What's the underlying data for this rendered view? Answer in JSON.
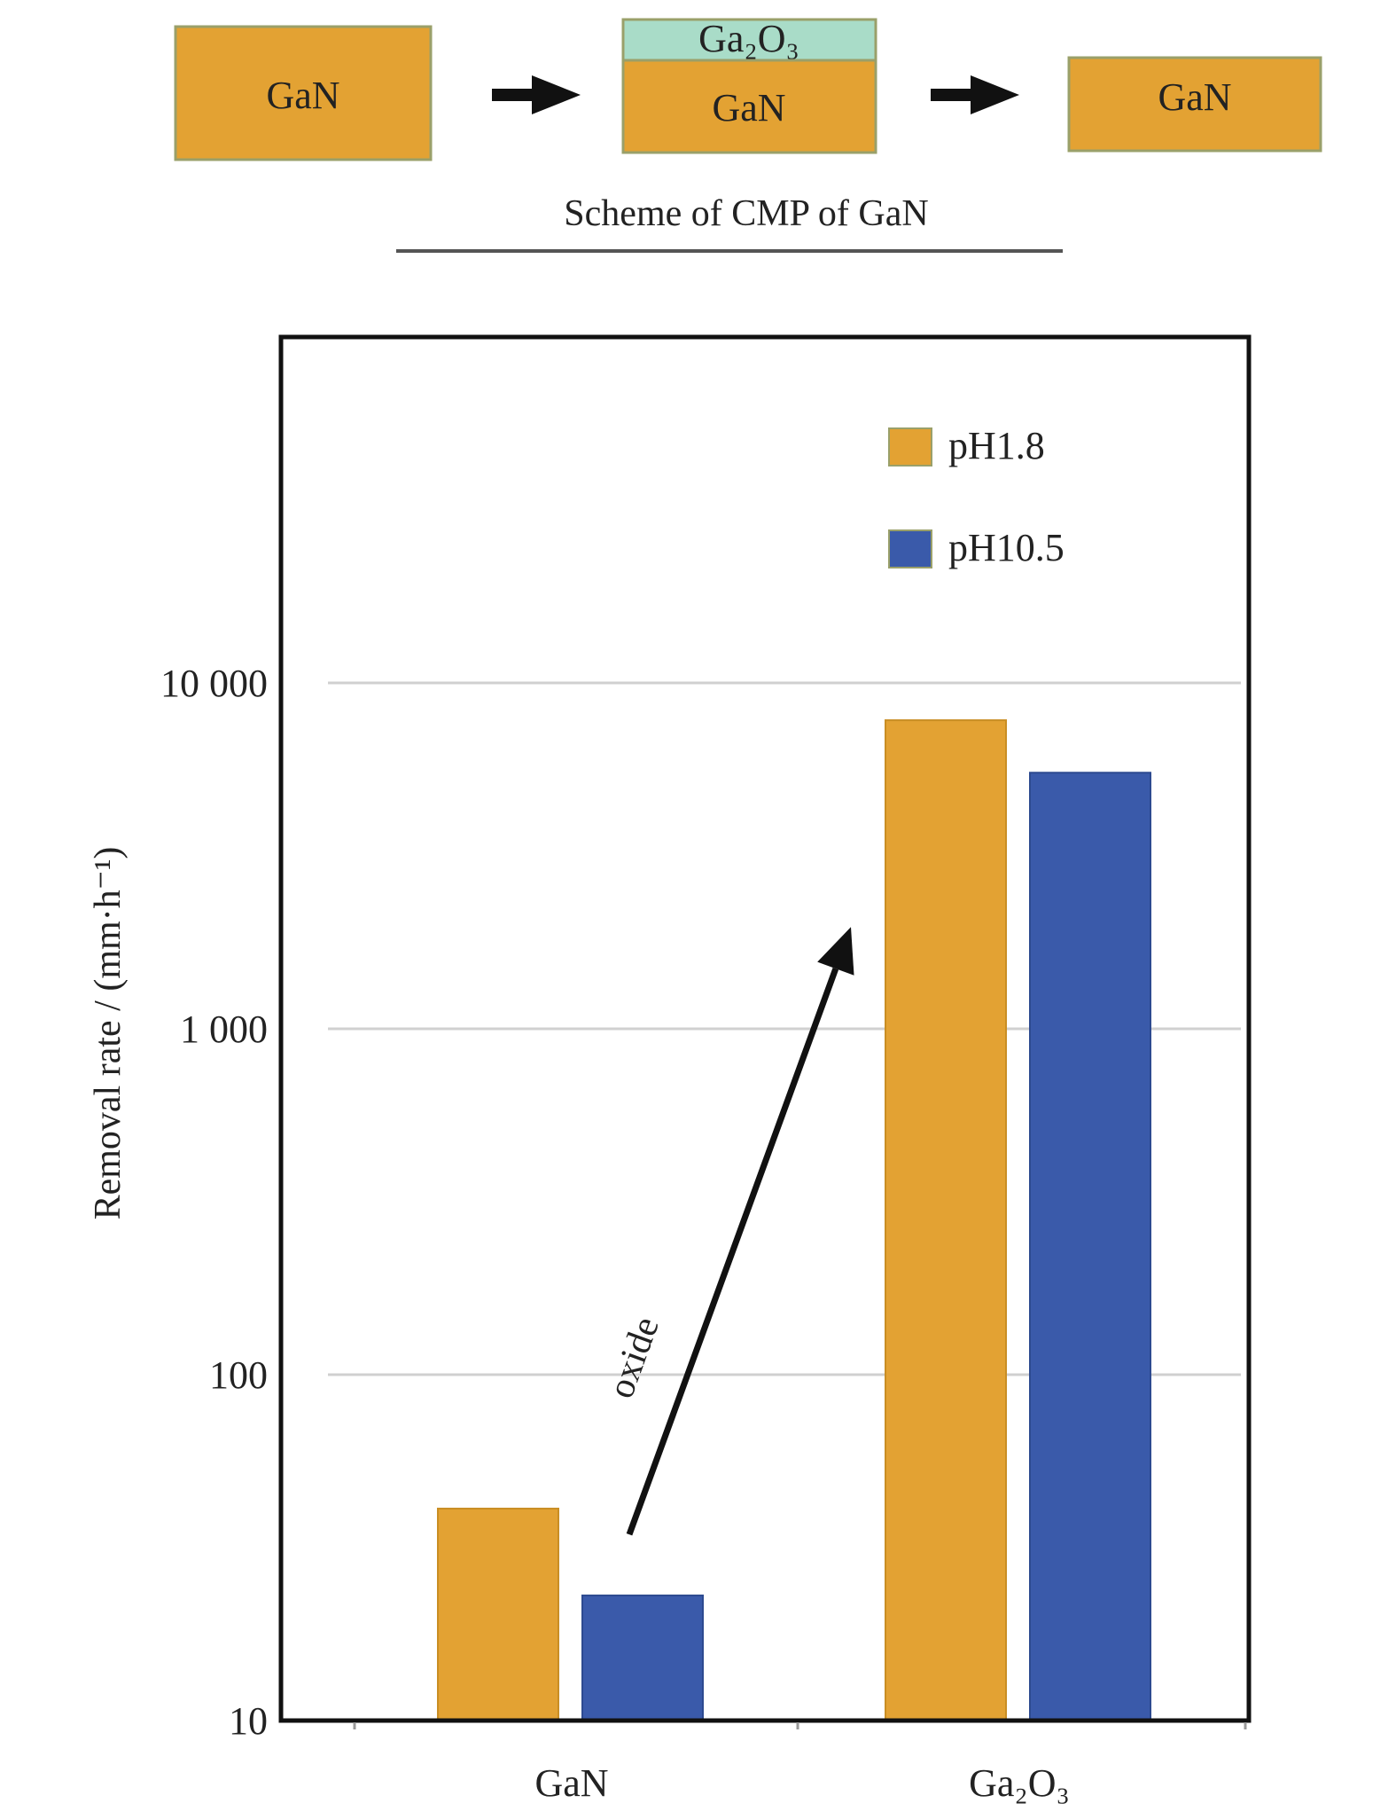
{
  "colors": {
    "gan_fill": "#E3A233",
    "gan_border": "#9AA06A",
    "oxide_fill": "#A9DCC8",
    "series_ph18": "#E3A233",
    "series_ph105": "#3A5AAA",
    "axis": "#111111",
    "grid": "#D0D0D0",
    "arrow": "#111111"
  },
  "scheme": {
    "caption": "Scheme of CMP of GaN",
    "step1_label": "GaN",
    "step2_oxide_label": "Ga₂O₃",
    "step2_label": "GaN",
    "step3_label": "GaN",
    "arrow_icons": [
      "arrow-right-icon",
      "arrow-right-icon"
    ]
  },
  "chart_data": {
    "type": "bar",
    "categories": [
      "GaN",
      "Ga₂O₃"
    ],
    "series": [
      {
        "name": "pH1.8",
        "values": [
          41,
          7800
        ]
      },
      {
        "name": "pH10.5",
        "values": [
          23,
          5500
        ]
      }
    ],
    "ylabel": "Removal rate / (mm·h⁻¹)",
    "yscale": "log",
    "ylim": [
      10,
      80000
    ],
    "yticks": [
      10,
      100,
      1000,
      10000
    ],
    "ytick_labels": [
      "10",
      "100",
      "1 000",
      "10 000"
    ],
    "grid": true,
    "legend_position": "top-right",
    "annotation": {
      "text": "oxide",
      "from": {
        "category": "GaN",
        "value": 40
      },
      "to": {
        "category": "Ga₂O₃",
        "value": 1750
      }
    }
  }
}
